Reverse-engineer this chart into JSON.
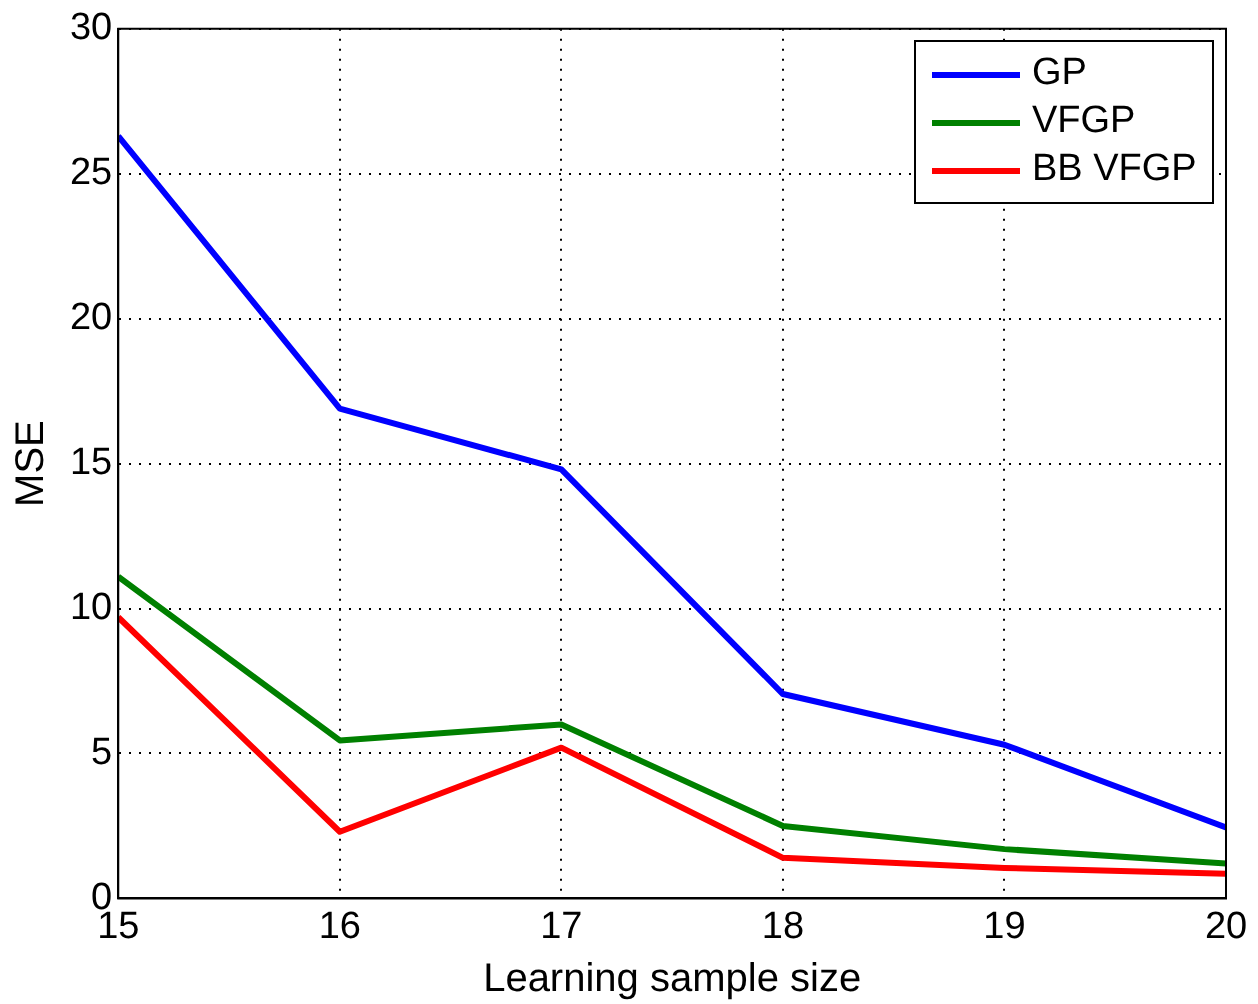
{
  "chart_data": {
    "type": "line",
    "xlabel": "Learning sample size",
    "ylabel": "MSE",
    "x": [
      15,
      16,
      17,
      18,
      19,
      20
    ],
    "series": [
      {
        "name": "GP",
        "color": "#0000ff",
        "values": [
          26.3,
          16.9,
          14.8,
          7.05,
          5.3,
          2.45
        ]
      },
      {
        "name": "VFGP",
        "color": "#008000",
        "values": [
          11.1,
          5.45,
          6.0,
          2.5,
          1.7,
          1.2
        ]
      },
      {
        "name": "BB VFGP",
        "color": "#ff0000",
        "values": [
          9.7,
          2.3,
          5.2,
          1.4,
          1.05,
          0.85
        ]
      }
    ],
    "xlim": [
      15,
      20
    ],
    "xticks": [
      15,
      16,
      17,
      18,
      19,
      20
    ],
    "ylim": [
      0,
      30
    ],
    "yticks": [
      0,
      5,
      10,
      15,
      20,
      25,
      30
    ],
    "grid": true,
    "legend": "top right",
    "marker": "none",
    "line_style": "solid"
  }
}
